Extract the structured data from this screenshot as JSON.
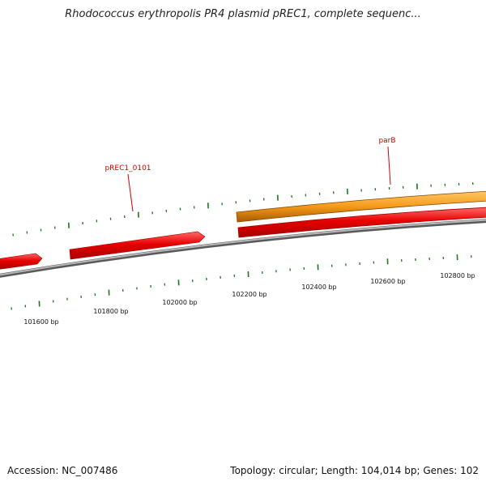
{
  "header": {
    "title": "Rhodococcus erythropolis PR4 plasmid pREC1, complete sequenc..."
  },
  "footer": {
    "accession": "Accession: NC_007486",
    "summary": "Topology: circular; Length: 104,014 bp; Genes: 102"
  },
  "map": {
    "tick_labels": [
      "101600 bp",
      "101800 bp",
      "102000 bp",
      "102200 bp",
      "102400 bp",
      "102600 bp",
      "102800 bp"
    ],
    "gene_labels": [
      "pREC1_0101",
      "parB"
    ]
  },
  "colors": {
    "backbone": "#888888",
    "tick": "#1a7a1a",
    "gene_red": "#e80000",
    "gene_orange": "#f59a1a",
    "label_red": "#d40000"
  }
}
